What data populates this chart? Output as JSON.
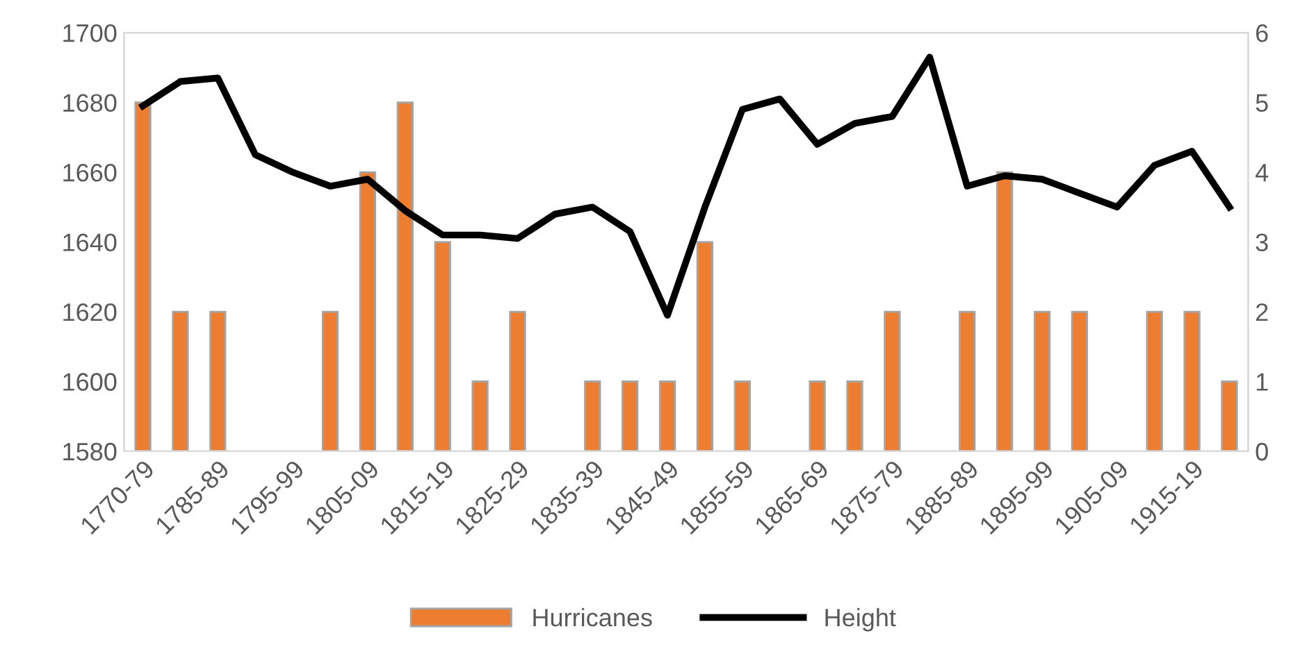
{
  "chart_data": {
    "type": "bar",
    "categories": [
      "1770-79",
      null,
      "1785-89",
      null,
      "1795-99",
      null,
      "1805-09",
      null,
      "1815-19",
      null,
      "1825-29",
      null,
      "1835-39",
      null,
      "1845-49",
      null,
      "1855-59",
      null,
      "1865-69",
      null,
      "1875-79",
      null,
      "1885-89",
      null,
      "1895-99",
      null,
      "1905-09",
      null,
      "1915-19",
      null
    ],
    "series": [
      {
        "name": "Hurricanes",
        "axis": "y2",
        "color": "#ed7d31",
        "values": [
          5,
          2,
          2,
          0,
          0,
          2,
          4,
          5,
          3,
          1,
          2,
          0,
          1,
          1,
          1,
          3,
          1,
          0,
          1,
          1,
          2,
          0,
          2,
          4,
          2,
          2,
          0,
          2,
          2,
          1
        ]
      },
      {
        "name": "Height",
        "type": "line",
        "axis": "y",
        "color": "#000000",
        "values": [
          1679,
          1686,
          1687,
          1665,
          1660,
          1656,
          1658,
          1649,
          1642,
          1642,
          1641,
          1648,
          1650,
          1643,
          1619,
          1650,
          1678,
          1681,
          1668,
          1674,
          1676,
          1693,
          1656,
          1659,
          1658,
          1654,
          1650,
          1662,
          1666,
          1650
        ]
      }
    ],
    "ylim": [
      1580,
      1700
    ],
    "yticks": [
      1580,
      1600,
      1620,
      1640,
      1660,
      1680,
      1700
    ],
    "y2lim": [
      0,
      6
    ],
    "y2ticks": [
      0,
      1,
      2,
      3,
      4,
      5,
      6
    ],
    "grid": false,
    "legend": "bottom",
    "marker": "none",
    "line_style": "solid"
  }
}
